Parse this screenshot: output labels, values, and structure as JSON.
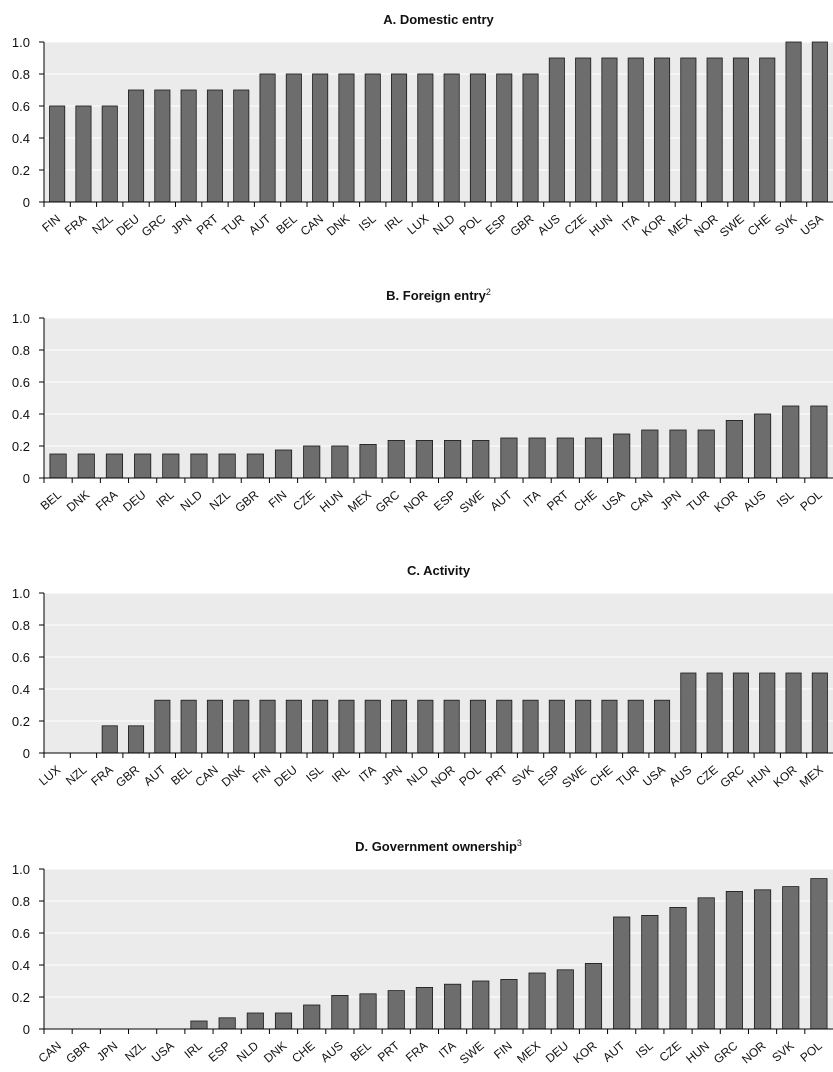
{
  "colors": {
    "plot_background": "#ebebeb",
    "bar_fill": "#6d6d6d",
    "bar_stroke": "#1a1a1a",
    "axis": "#000000",
    "gridline": "#ffffff"
  },
  "chart_data": [
    {
      "type": "bar",
      "title": "A. Domestic entry",
      "title_superscript": "",
      "ylim": [
        0,
        1.0
      ],
      "yticks": [
        0,
        0.2,
        0.4,
        0.6,
        0.8,
        1.0
      ],
      "ytick_labels": [
        "0",
        "0.2",
        "0.4",
        "0.6",
        "0.8",
        "1.0"
      ],
      "grid": true,
      "categories": [
        "FIN",
        "FRA",
        "NZL",
        "DEU",
        "GRC",
        "JPN",
        "PRT",
        "TUR",
        "AUT",
        "BEL",
        "CAN",
        "DNK",
        "ISL",
        "IRL",
        "LUX",
        "NLD",
        "POL",
        "ESP",
        "GBR",
        "AUS",
        "CZE",
        "HUN",
        "ITA",
        "KOR",
        "MEX",
        "NOR",
        "SWE",
        "CHE",
        "SVK",
        "USA"
      ],
      "values": [
        0.6,
        0.6,
        0.6,
        0.7,
        0.7,
        0.7,
        0.7,
        0.7,
        0.8,
        0.8,
        0.8,
        0.8,
        0.8,
        0.8,
        0.8,
        0.8,
        0.8,
        0.8,
        0.8,
        0.9,
        0.9,
        0.9,
        0.9,
        0.9,
        0.9,
        0.9,
        0.9,
        0.9,
        1.0,
        1.0
      ]
    },
    {
      "type": "bar",
      "title": "B. Foreign entry",
      "title_superscript": "2",
      "ylim": [
        0,
        1.0
      ],
      "yticks": [
        0,
        0.2,
        0.4,
        0.6,
        0.8,
        1.0
      ],
      "ytick_labels": [
        "0",
        "0.2",
        "0.4",
        "0.6",
        "0.8",
        "1.0"
      ],
      "grid": true,
      "categories": [
        "BEL",
        "DNK",
        "FRA",
        "DEU",
        "IRL",
        "NLD",
        "NZL",
        "GBR",
        "FIN",
        "CZE",
        "HUN",
        "MEX",
        "GRC",
        "NOR",
        "ESP",
        "SWE",
        "AUT",
        "ITA",
        "PRT",
        "CHE",
        "USA",
        "CAN",
        "JPN",
        "TUR",
        "KOR",
        "AUS",
        "ISL",
        "POL"
      ],
      "values": [
        0.15,
        0.15,
        0.15,
        0.15,
        0.15,
        0.15,
        0.15,
        0.15,
        0.175,
        0.2,
        0.2,
        0.21,
        0.235,
        0.235,
        0.235,
        0.235,
        0.25,
        0.25,
        0.25,
        0.25,
        0.275,
        0.3,
        0.3,
        0.3,
        0.36,
        0.4,
        0.45,
        0.45
      ]
    },
    {
      "type": "bar",
      "title": "C. Activity",
      "title_superscript": "",
      "ylim": [
        0,
        1.0
      ],
      "yticks": [
        0,
        0.2,
        0.4,
        0.6,
        0.8,
        1.0
      ],
      "ytick_labels": [
        "0",
        "0.2",
        "0.4",
        "0.6",
        "0.8",
        "1.0"
      ],
      "grid": true,
      "categories": [
        "LUX",
        "NZL",
        "FRA",
        "GBR",
        "AUT",
        "BEL",
        "CAN",
        "DNK",
        "FIN",
        "DEU",
        "ISL",
        "IRL",
        "ITA",
        "JPN",
        "NLD",
        "NOR",
        "POL",
        "PRT",
        "SVK",
        "ESP",
        "SWE",
        "CHE",
        "TUR",
        "USA",
        "AUS",
        "CZE",
        "GRC",
        "HUN",
        "KOR",
        "MEX"
      ],
      "values": [
        0,
        0,
        0.17,
        0.17,
        0.33,
        0.33,
        0.33,
        0.33,
        0.33,
        0.33,
        0.33,
        0.33,
        0.33,
        0.33,
        0.33,
        0.33,
        0.33,
        0.33,
        0.33,
        0.33,
        0.33,
        0.33,
        0.33,
        0.33,
        0.5,
        0.5,
        0.5,
        0.5,
        0.5,
        0.5
      ]
    },
    {
      "type": "bar",
      "title": "D. Government ownership",
      "title_superscript": "3",
      "ylim": [
        0,
        1.0
      ],
      "yticks": [
        0,
        0.2,
        0.4,
        0.6,
        0.8,
        1.0
      ],
      "ytick_labels": [
        "0",
        "0.2",
        "0.4",
        "0.6",
        "0.8",
        "1.0"
      ],
      "grid": true,
      "categories": [
        "CAN",
        "GBR",
        "JPN",
        "NZL",
        "USA",
        "IRL",
        "ESP",
        "NLD",
        "DNK",
        "CHE",
        "AUS",
        "BEL",
        "PRT",
        "FRA",
        "ITA",
        "SWE",
        "FIN",
        "MEX",
        "DEU",
        "KOR",
        "AUT",
        "ISL",
        "CZE",
        "HUN",
        "GRC",
        "NOR",
        "SVK",
        "POL"
      ],
      "values": [
        0,
        0,
        0,
        0,
        0,
        0.05,
        0.07,
        0.1,
        0.1,
        0.15,
        0.21,
        0.22,
        0.24,
        0.26,
        0.28,
        0.3,
        0.31,
        0.35,
        0.37,
        0.41,
        0.7,
        0.71,
        0.76,
        0.82,
        0.86,
        0.87,
        0.89,
        0.94
      ]
    }
  ]
}
